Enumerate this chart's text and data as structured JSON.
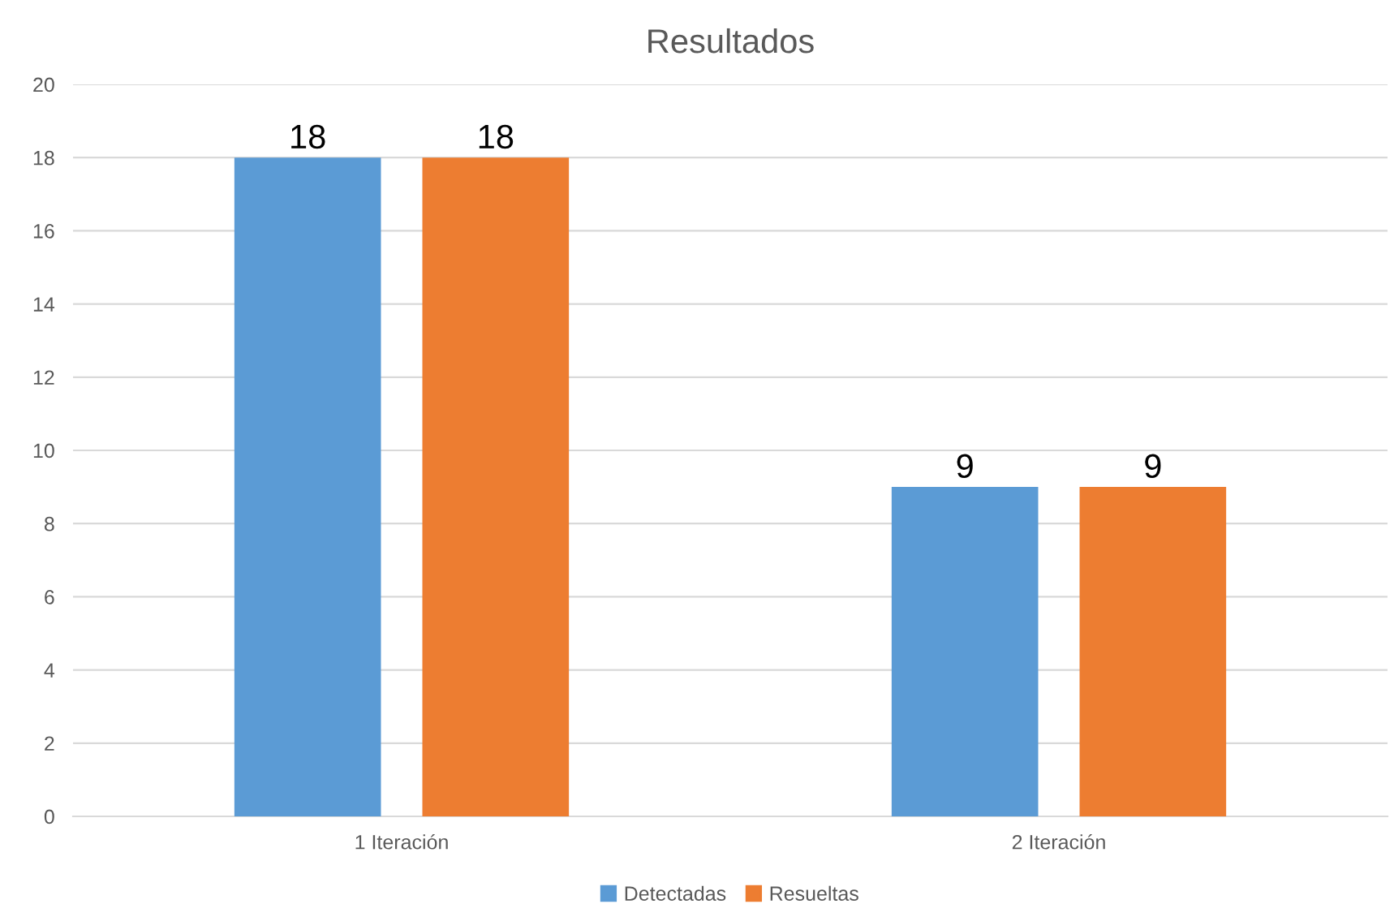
{
  "chart_data": {
    "type": "bar",
    "title": "Resultados",
    "categories": [
      "1 Iteración",
      "2 Iteración"
    ],
    "series": [
      {
        "name": "Detectadas",
        "color": "#5b9bd5",
        "values": [
          18,
          9
        ]
      },
      {
        "name": "Resueltas",
        "color": "#ed7d31",
        "values": [
          18,
          9
        ]
      }
    ],
    "ylim": [
      0,
      20
    ],
    "yticks": [
      0,
      2,
      4,
      6,
      8,
      10,
      12,
      14,
      16,
      18,
      20
    ],
    "grid": "y",
    "legend": "bottom",
    "data_labels": true
  }
}
